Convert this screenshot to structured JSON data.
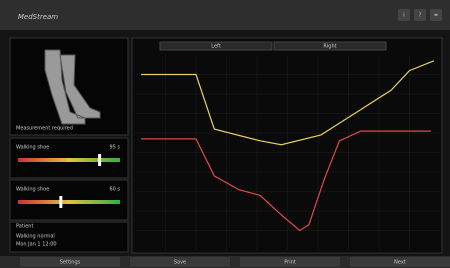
{
  "header": {
    "title": "MedStream",
    "buttons": [
      "i",
      "?",
      "≡"
    ]
  },
  "sidebar": {
    "image_caption": "Measurement required",
    "sliders": [
      {
        "label": "Walking shoe",
        "value_label": "95 s",
        "position": 80,
        "range": [
          0,
          100
        ]
      },
      {
        "label": "Walking shoe",
        "value_label": "60 s",
        "position": 42,
        "range": [
          0,
          100
        ]
      }
    ],
    "info": {
      "title": "Patient",
      "lines": [
        "Walking normal",
        "Mon Jan 1 12:00"
      ]
    }
  },
  "chart_data": {
    "type": "line",
    "tabs": [
      "Left",
      "Right"
    ],
    "xlim": [
      0,
      100
    ],
    "ylim": [
      0,
      100
    ],
    "series": [
      {
        "color": "#e8d25a",
        "x": [
          2,
          20,
          26,
          41,
          48,
          61,
          74,
          84,
          90,
          98
        ],
        "values": [
          90,
          90,
          62,
          56,
          54,
          59,
          72,
          82,
          92,
          97
        ]
      },
      {
        "color": "#e04848",
        "x": [
          2,
          20,
          26,
          34,
          41,
          48,
          54,
          57,
          62,
          67,
          74,
          97
        ],
        "values": [
          57,
          57,
          38,
          31,
          28,
          18,
          10,
          13,
          36,
          56,
          61,
          61
        ]
      }
    ]
  },
  "footer": {
    "buttons": [
      "Settings",
      "Save",
      "Print",
      "Next"
    ]
  }
}
